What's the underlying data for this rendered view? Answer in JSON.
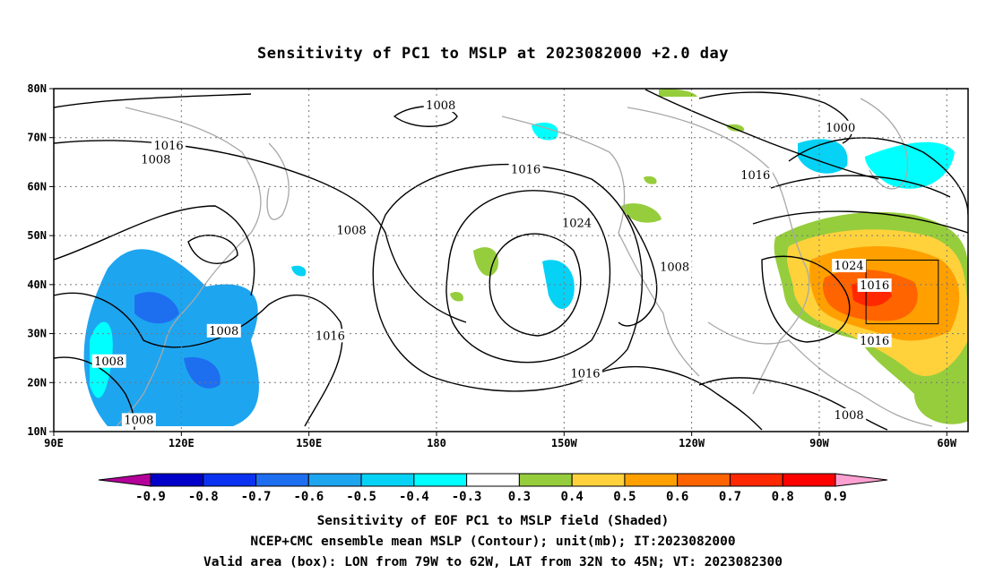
{
  "title": "Sensitivity of PC1 to MSLP at 2023082000 +2.0 day",
  "map": {
    "lon_range": [
      90,
      305
    ],
    "lat_range": [
      10,
      80
    ],
    "lat_ticks": [
      {
        "lat": 80,
        "label": "80N"
      },
      {
        "lat": 70,
        "label": "70N"
      },
      {
        "lat": 60,
        "label": "60N"
      },
      {
        "lat": 50,
        "label": "50N"
      },
      {
        "lat": 40,
        "label": "40N"
      },
      {
        "lat": 30,
        "label": "30N"
      },
      {
        "lat": 20,
        "label": "20N"
      },
      {
        "lat": 10,
        "label": "10N"
      }
    ],
    "lon_ticks": [
      {
        "lon": 90,
        "label": "90E"
      },
      {
        "lon": 120,
        "label": "120E"
      },
      {
        "lon": 150,
        "label": "150E"
      },
      {
        "lon": 180,
        "label": "180"
      },
      {
        "lon": 210,
        "label": "150W"
      },
      {
        "lon": 240,
        "label": "120W"
      },
      {
        "lon": 270,
        "label": "90W"
      },
      {
        "lon": 300,
        "label": "60W"
      }
    ],
    "grid": true,
    "valid_box": {
      "lon_min": 281,
      "lon_max": 298,
      "lat_min": 32,
      "lat_max": 45
    },
    "contour_labels": [
      {
        "text": "1008",
        "lon": 181,
        "lat": 76.5
      },
      {
        "text": "1016",
        "lon": 117,
        "lat": 68.3
      },
      {
        "text": "1008",
        "lon": 114,
        "lat": 65.5
      },
      {
        "text": "1000",
        "lon": 275,
        "lat": 72.0
      },
      {
        "text": "1016",
        "lon": 201,
        "lat": 63.5
      },
      {
        "text": "1016",
        "lon": 255,
        "lat": 62.3
      },
      {
        "text": "1008",
        "lon": 160,
        "lat": 51.0
      },
      {
        "text": "1024",
        "lon": 213,
        "lat": 52.5
      },
      {
        "text": "1008",
        "lon": 236,
        "lat": 43.5
      },
      {
        "text": "1024",
        "lon": 277,
        "lat": 43.8
      },
      {
        "text": "1016",
        "lon": 283,
        "lat": 39.8
      },
      {
        "text": "1016",
        "lon": 155,
        "lat": 29.5
      },
      {
        "text": "1008",
        "lon": 130,
        "lat": 30.5
      },
      {
        "text": "1008",
        "lon": 103,
        "lat": 24.3
      },
      {
        "text": "1016",
        "lon": 215,
        "lat": 21.8
      },
      {
        "text": "1016",
        "lon": 283,
        "lat": 28.5
      },
      {
        "text": "1008",
        "lon": 277,
        "lat": 13.3
      },
      {
        "text": "1008",
        "lon": 110,
        "lat": 12.3
      }
    ]
  },
  "colorbar": {
    "colors": [
      "#b4009b",
      "#0000c8",
      "#0a32f0",
      "#1e6ef0",
      "#1ea5f0",
      "#05d2f5",
      "#00ffff",
      "#ffffff",
      "#96cd3c",
      "#ffd23c",
      "#ffa000",
      "#ff6400",
      "#ff2800",
      "#ff0000",
      "#ffa0d2"
    ],
    "labels": [
      "-0.9",
      "-0.8",
      "-0.7",
      "-0.6",
      "-0.5",
      "-0.4",
      "-0.3",
      "0.3",
      "0.4",
      "0.5",
      "0.6",
      "0.7",
      "0.8",
      "0.9"
    ]
  },
  "captions": {
    "line1": "Sensitivity of EOF PC1 to MSLP field (Shaded)",
    "line2": "NCEP+CMC ensemble mean MSLP (Contour); unit(mb); IT:2023082000",
    "line3": "Valid area (box): LON from 79W to 62W, LAT from 32N to 45N; VT: 2023082300"
  }
}
